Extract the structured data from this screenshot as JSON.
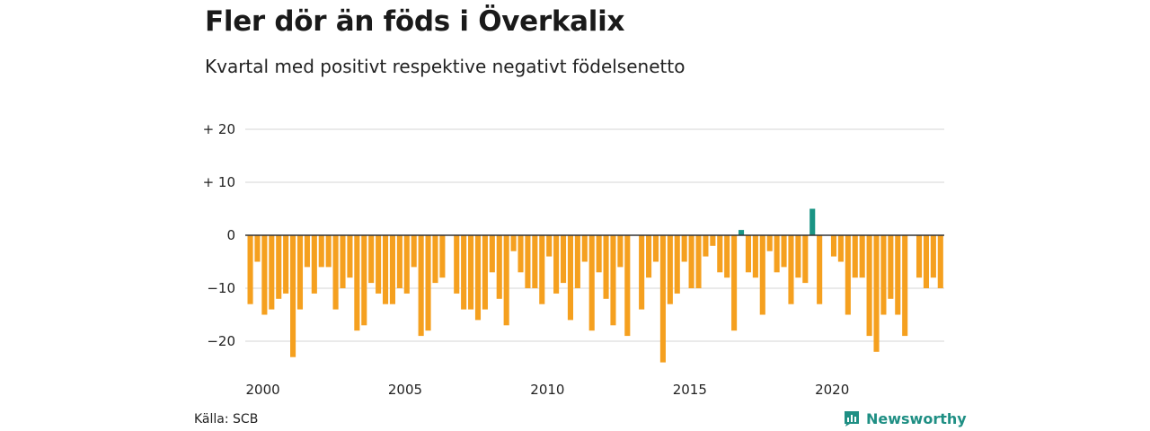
{
  "title": "Fler dör än föds i Överkalix",
  "subtitle": "Kvartal med positivt respektive negativt födelsenetto",
  "source": "Källa: SCB",
  "brand": "Newsworthy",
  "colors": {
    "negative": "#f5a01f",
    "positive": "#1a9484",
    "grid": "#dddddd",
    "zero": "#333333"
  },
  "chart_data": {
    "type": "bar",
    "title": "Fler dör än föds i Överkalix",
    "subtitle": "Kvartal med positivt respektive negativt födelsenetto",
    "xlabel": "",
    "ylabel": "",
    "ylim": [
      -24,
      20
    ],
    "grid": true,
    "y_ticks": [
      20,
      10,
      0,
      -10,
      -20
    ],
    "y_tick_labels": [
      "+ 20",
      "+ 10",
      "0",
      "−10",
      "−20"
    ],
    "x_tick_labels": [
      "2000",
      "2005",
      "2010",
      "2015",
      "2020"
    ],
    "x_tick_years": [
      2000,
      2005,
      2010,
      2015,
      2020
    ],
    "first_period": "2000 Q1",
    "values": [
      -13,
      -5,
      -15,
      -14,
      -12,
      -11,
      -23,
      -14,
      -6,
      -11,
      -6,
      -6,
      -14,
      -10,
      -8,
      -18,
      -17,
      -9,
      -11,
      -13,
      -13,
      -10,
      -11,
      -6,
      -19,
      -18,
      -9,
      -8,
      null,
      -11,
      -14,
      -14,
      -16,
      -14,
      -7,
      -12,
      -17,
      -3,
      -7,
      -10,
      -10,
      -13,
      -4,
      -11,
      -9,
      -16,
      -10,
      -5,
      -18,
      -7,
      -12,
      -17,
      -6,
      -19,
      null,
      -14,
      -8,
      -5,
      -24,
      -13,
      -11,
      -5,
      -10,
      -10,
      -4,
      -2,
      -7,
      -8,
      -18,
      1,
      -7,
      -8,
      -15,
      -3,
      -7,
      -6,
      -13,
      -8,
      -9,
      5,
      -13,
      null,
      -4,
      -5,
      -15,
      -8,
      -8,
      -19,
      -22,
      -15,
      -12,
      -15,
      -19,
      null,
      -8,
      -10,
      -8,
      -10
    ]
  }
}
